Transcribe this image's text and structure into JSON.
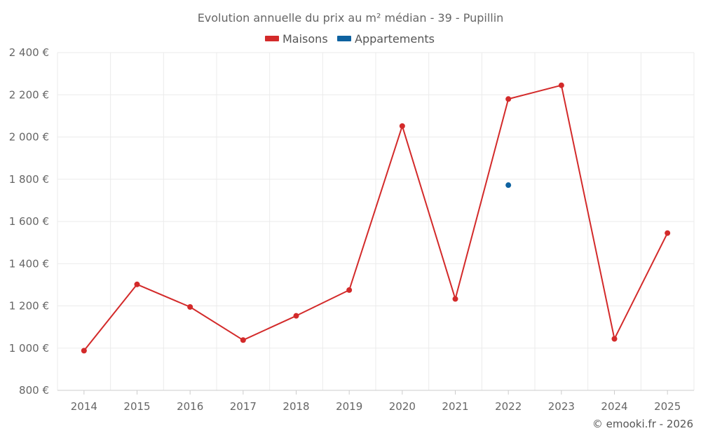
{
  "chart_data": {
    "type": "line",
    "title": "Evolution annuelle du prix au m² médian - 39 - Pupillin",
    "categories": [
      "2014",
      "2015",
      "2016",
      "2017",
      "2018",
      "2019",
      "2020",
      "2021",
      "2022",
      "2023",
      "2024",
      "2025"
    ],
    "series": [
      {
        "name": "Maisons",
        "color": "#d32a2a",
        "values": [
          988,
          1302,
          1195,
          1038,
          1153,
          1275,
          2052,
          1233,
          2180,
          2245,
          1044,
          1545
        ]
      },
      {
        "name": "Appartements",
        "color": "#0e62a0",
        "values": [
          null,
          null,
          null,
          null,
          null,
          null,
          null,
          null,
          1772,
          null,
          null,
          null
        ]
      }
    ],
    "ylim": [
      800,
      2400
    ],
    "y_ticks": [
      800,
      1000,
      1200,
      1400,
      1600,
      1800,
      2000,
      2200,
      2400
    ],
    "y_tick_labels": [
      "800 €",
      "1 000 €",
      "1 200 €",
      "1 400 €",
      "1 600 €",
      "1 800 €",
      "2 000 €",
      "2 200 €",
      "2 400 €"
    ],
    "grid": true,
    "legend_position": "top-center",
    "credit": "© emooki.fr - 2026"
  }
}
